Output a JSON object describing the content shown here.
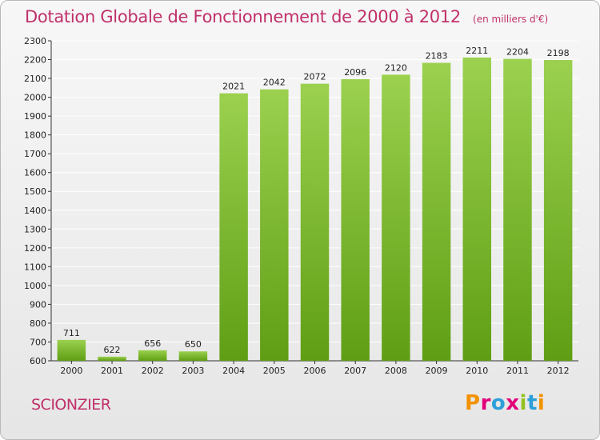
{
  "header": {
    "title": "Dotation Globale de Fonctionnement de 2000 à 2012",
    "subtitle": "(en milliers d'€)"
  },
  "footer": {
    "commune": "SCIONZIER",
    "brand": "Proxiti",
    "brand_colors": [
      "#f39200",
      "#e2007a",
      "#2d9fd9",
      "#e2007a",
      "#95c11f",
      "#2d9fd9",
      "#f39200"
    ]
  },
  "colors": {
    "bar_top": "#9bd14f",
    "bar_bottom": "#5f9e14",
    "grid": "#ffffff",
    "title": "#c0306a"
  },
  "chart_data": {
    "type": "bar",
    "title": "Dotation Globale de Fonctionnement de 2000 à 2012",
    "subtitle": "(en milliers d'€)",
    "xlabel": "",
    "ylabel": "",
    "categories": [
      "2000",
      "2001",
      "2002",
      "2003",
      "2004",
      "2005",
      "2006",
      "2007",
      "2008",
      "2009",
      "2010",
      "2011",
      "2012"
    ],
    "values": [
      711,
      622,
      656,
      650,
      2021,
      2042,
      2072,
      2096,
      2120,
      2183,
      2211,
      2204,
      2198
    ],
    "ylim": [
      600,
      2300
    ],
    "yticks": [
      600,
      700,
      800,
      900,
      1000,
      1100,
      1200,
      1300,
      1400,
      1500,
      1600,
      1700,
      1800,
      1900,
      2000,
      2100,
      2200,
      2300
    ],
    "grid": true,
    "data_labels": true
  }
}
